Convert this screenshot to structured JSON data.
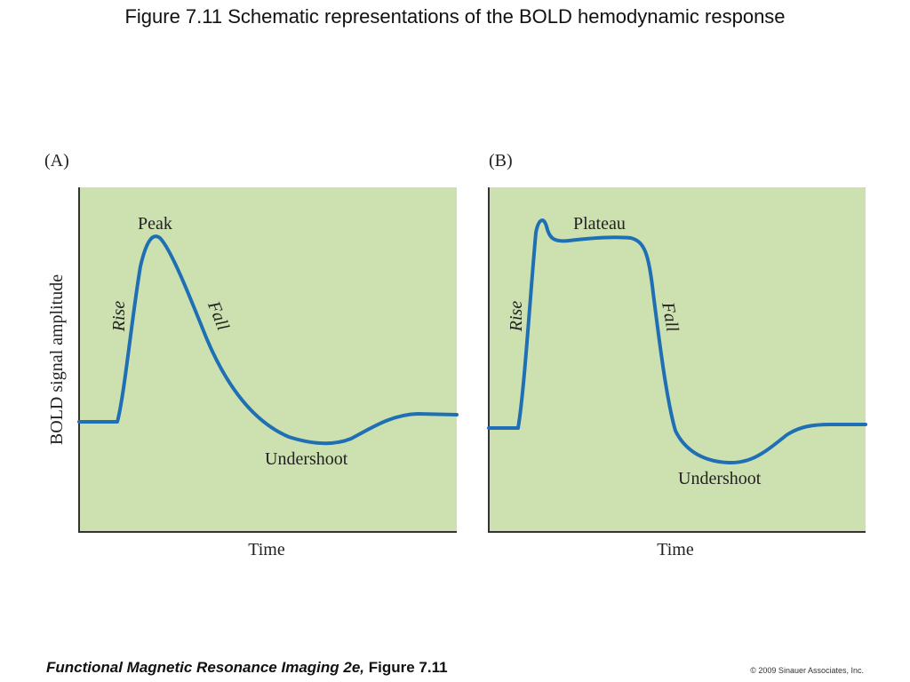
{
  "slide": {
    "title": "Figure 7.11  Schematic representations of the BOLD hemodynamic response"
  },
  "figure": {
    "y_axis_label": "BOLD signal amplitude",
    "panels": [
      {
        "label": "(A)",
        "x_axis_label": "Time",
        "annotations": {
          "peak": "Peak",
          "rise": "Rise",
          "fall": "Fall",
          "undershoot": "Undershoot"
        }
      },
      {
        "label": "(B)",
        "x_axis_label": "Time",
        "annotations": {
          "plateau": "Plateau",
          "rise": "Rise",
          "fall": "Fall",
          "undershoot": "Undershoot"
        }
      }
    ]
  },
  "footer": {
    "book_title": "Functional Magnetic Resonance Imaging 2e,",
    "figure_ref": " Figure 7.11",
    "copyright": "© 2009 Sinauer Associates, Inc."
  },
  "colors": {
    "panel_fill": "#cde0b0",
    "curve": "#1f6fb5",
    "axis": "#333333"
  }
}
